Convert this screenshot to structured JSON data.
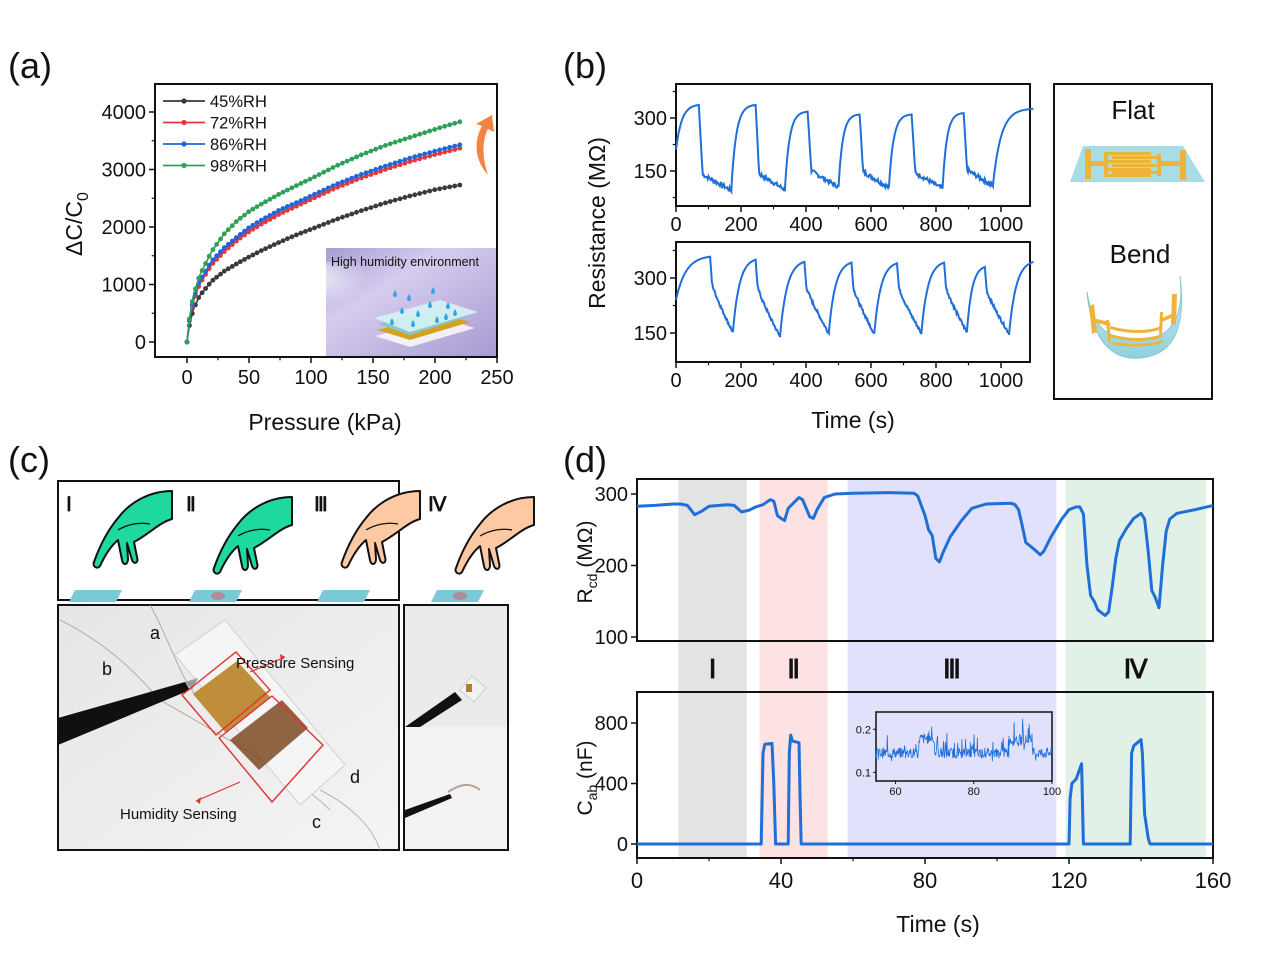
{
  "panel_labels": {
    "a": "(a)",
    "b": "(b)",
    "c": "(c)",
    "d": "(d)"
  },
  "colors": {
    "rh45": "#3a3a3a",
    "rh72": "#e8363a",
    "rh86": "#2066d8",
    "rh98": "#2ea05a",
    "trace": "#1f6fd8",
    "phase_I": "#e3e3e3",
    "phase_II": "#fde2e4",
    "phase_III": "#e1e1fb",
    "phase_IV": "#e2f1e8",
    "glove": "#1fd89f",
    "skin": "#fdc9a2",
    "pad": "#79c9d6",
    "electrode": "#f0b33a"
  },
  "chart_data": [
    {
      "id": "a",
      "type": "line",
      "title": "",
      "xlabel": "Pressure (kPa)",
      "ylabel": "ΔC/C0",
      "xlim": [
        -20,
        250
      ],
      "ylim": [
        -300,
        4400
      ],
      "xticks": [
        0,
        50,
        100,
        150,
        200,
        250
      ],
      "yticks": [
        0,
        1000,
        2000,
        3000,
        4000
      ],
      "legend_position": "top-left",
      "series": [
        {
          "name": "45%RH",
          "x": [
            0,
            2,
            5,
            10,
            20,
            30,
            40,
            50,
            60,
            75,
            90,
            100,
            120,
            140,
            160,
            180,
            200,
            220
          ],
          "y": [
            0,
            300,
            560,
            800,
            1060,
            1230,
            1360,
            1480,
            1590,
            1740,
            1880,
            1960,
            2130,
            2280,
            2420,
            2540,
            2650,
            2730
          ]
        },
        {
          "name": "72%RH",
          "x": [
            0,
            2,
            5,
            10,
            20,
            30,
            40,
            50,
            60,
            75,
            90,
            100,
            120,
            140,
            160,
            180,
            200,
            220
          ],
          "y": [
            0,
            380,
            700,
            1000,
            1350,
            1570,
            1760,
            1920,
            2050,
            2230,
            2380,
            2480,
            2680,
            2850,
            3000,
            3140,
            3260,
            3370
          ]
        },
        {
          "name": "86%RH",
          "x": [
            0,
            2,
            5,
            10,
            20,
            30,
            40,
            50,
            60,
            75,
            90,
            100,
            120,
            140,
            160,
            180,
            200,
            220
          ],
          "y": [
            0,
            400,
            740,
            1050,
            1410,
            1640,
            1820,
            1990,
            2120,
            2300,
            2440,
            2540,
            2740,
            2910,
            3060,
            3200,
            3320,
            3430
          ]
        },
        {
          "name": "98%RH",
          "x": [
            0,
            2,
            5,
            10,
            20,
            30,
            40,
            50,
            60,
            75,
            90,
            100,
            120,
            140,
            160,
            180,
            200,
            220
          ],
          "y": [
            0,
            420,
            800,
            1150,
            1580,
            1880,
            2100,
            2270,
            2400,
            2580,
            2740,
            2840,
            3060,
            3250,
            3420,
            3560,
            3700,
            3830
          ]
        }
      ],
      "annotation": "arrow indicating increasing humidity",
      "inset": {
        "text": "High humidity environment"
      }
    },
    {
      "id": "b-flat",
      "type": "line",
      "xlabel": "Time (s)",
      "ylabel": "Resistance (MΩ)",
      "xlim": [
        0,
        1100
      ],
      "ylim": [
        60,
        400
      ],
      "xticks": [
        0,
        200,
        400,
        600,
        800,
        1000
      ],
      "yticks": [
        150,
        300
      ],
      "series": [
        {
          "name": "Flat",
          "cycles": [
            {
              "rise_start": 0,
              "peak_t": 70,
              "peak": 337,
              "trough_t": 170,
              "trough": 95,
              "start": 210
            },
            {
              "rise_start": 170,
              "peak_t": 245,
              "peak": 337,
              "trough_t": 335,
              "trough": 97
            },
            {
              "rise_start": 335,
              "peak_t": 405,
              "peak": 318,
              "trough_t": 500,
              "trough": 105
            },
            {
              "rise_start": 500,
              "peak_t": 565,
              "peak": 310,
              "trough_t": 655,
              "trough": 103
            },
            {
              "rise_start": 655,
              "peak_t": 725,
              "peak": 310,
              "trough_t": 820,
              "trough": 100
            },
            {
              "rise_start": 820,
              "peak_t": 885,
              "peak": 314,
              "trough_t": 975,
              "trough": 108
            },
            {
              "rise_start": 975,
              "peak_t": 1100,
              "peak": 326
            }
          ]
        }
      ]
    },
    {
      "id": "b-bend",
      "type": "line",
      "xlabel": "Time (s)",
      "ylabel": "Resistance (MΩ)",
      "xlim": [
        0,
        1100
      ],
      "ylim": [
        70,
        380
      ],
      "xticks": [
        0,
        200,
        400,
        600,
        800,
        1000
      ],
      "yticks": [
        150,
        300
      ],
      "series": [
        {
          "name": "Bend",
          "cycles": [
            {
              "rise_start": 0,
              "peak_t": 105,
              "peak": 358,
              "trough_t": 175,
              "trough": 152,
              "start": 240
            },
            {
              "rise_start": 175,
              "peak_t": 245,
              "peak": 350,
              "trough_t": 320,
              "trough": 140
            },
            {
              "rise_start": 320,
              "peak_t": 395,
              "peak": 344,
              "trough_t": 470,
              "trough": 150
            },
            {
              "rise_start": 470,
              "peak_t": 540,
              "peak": 342,
              "trough_t": 610,
              "trough": 148
            },
            {
              "rise_start": 610,
              "peak_t": 680,
              "peak": 340,
              "trough_t": 755,
              "trough": 150
            },
            {
              "rise_start": 755,
              "peak_t": 825,
              "peak": 342,
              "trough_t": 895,
              "trough": 152
            },
            {
              "rise_start": 895,
              "peak_t": 950,
              "peak": 330,
              "trough_t": 1025,
              "trough": 148
            },
            {
              "rise_start": 1025,
              "peak_t": 1100,
              "peak": 344
            }
          ]
        }
      ]
    },
    {
      "id": "d-top",
      "type": "line",
      "ylabel": "Rcd (MΩ)",
      "ylabel_main": "R",
      "ylabel_sub": "cd",
      "ylabel_unit": " (MΩ)",
      "xlim": [
        0,
        160
      ],
      "ylim": [
        95,
        320
      ],
      "yticks": [
        100,
        200,
        300
      ],
      "points": [
        [
          0,
          283
        ],
        [
          5,
          284
        ],
        [
          10,
          286
        ],
        [
          12,
          286
        ],
        [
          14,
          284
        ],
        [
          16,
          271
        ],
        [
          18,
          276
        ],
        [
          20,
          283
        ],
        [
          25,
          285
        ],
        [
          27,
          284
        ],
        [
          29,
          275
        ],
        [
          31,
          277
        ],
        [
          33,
          282
        ],
        [
          35,
          285
        ],
        [
          37,
          292
        ],
        [
          38,
          290
        ],
        [
          39,
          270
        ],
        [
          40,
          266
        ],
        [
          41,
          263
        ],
        [
          42,
          280
        ],
        [
          44,
          290
        ],
        [
          45,
          295
        ],
        [
          46,
          292
        ],
        [
          48,
          268
        ],
        [
          49,
          266
        ],
        [
          50,
          278
        ],
        [
          52,
          295
        ],
        [
          55,
          300
        ],
        [
          60,
          301
        ],
        [
          70,
          302
        ],
        [
          77,
          301
        ],
        [
          78,
          297
        ],
        [
          80,
          270
        ],
        [
          81,
          250
        ],
        [
          82,
          242
        ],
        [
          83,
          210
        ],
        [
          84,
          205
        ],
        [
          85,
          218
        ],
        [
          87,
          240
        ],
        [
          90,
          262
        ],
        [
          93,
          280
        ],
        [
          97,
          286
        ],
        [
          104,
          287
        ],
        [
          105,
          285
        ],
        [
          106,
          278
        ],
        [
          107,
          256
        ],
        [
          108,
          232
        ],
        [
          110,
          224
        ],
        [
          112,
          215
        ],
        [
          113,
          220
        ],
        [
          115,
          240
        ],
        [
          118,
          265
        ],
        [
          120,
          278
        ],
        [
          122,
          282
        ],
        [
          123,
          282
        ],
        [
          124,
          272
        ],
        [
          125,
          200
        ],
        [
          126,
          158
        ],
        [
          127,
          150
        ],
        [
          128,
          138
        ],
        [
          130,
          130
        ],
        [
          131,
          135
        ],
        [
          132,
          170
        ],
        [
          133,
          210
        ],
        [
          134,
          235
        ],
        [
          136,
          252
        ],
        [
          138,
          266
        ],
        [
          140,
          273
        ],
        [
          141,
          265
        ],
        [
          142,
          220
        ],
        [
          143,
          165
        ],
        [
          144,
          155
        ],
        [
          145,
          141
        ],
        [
          146,
          200
        ],
        [
          147,
          248
        ],
        [
          148,
          265
        ],
        [
          150,
          273
        ],
        [
          155,
          278
        ],
        [
          160,
          284
        ]
      ]
    },
    {
      "id": "d-bottom",
      "type": "line",
      "ylabel": "Cab (nF)",
      "ylabel_main": "C",
      "ylabel_sub": "ab",
      "ylabel_unit": " (nF)",
      "xlabel": "Time (s)",
      "xlim": [
        0,
        160
      ],
      "ylim": [
        -90,
        1000
      ],
      "xticks": [
        0,
        40,
        80,
        120,
        160
      ],
      "yticks": [
        0,
        400,
        800
      ],
      "points": [
        [
          0,
          0
        ],
        [
          34.5,
          0
        ],
        [
          35,
          600
        ],
        [
          35.5,
          660
        ],
        [
          37.5,
          665
        ],
        [
          38,
          400
        ],
        [
          38.5,
          0
        ],
        [
          42,
          0
        ],
        [
          42.3,
          600
        ],
        [
          42.7,
          720
        ],
        [
          43.2,
          680
        ],
        [
          45,
          670
        ],
        [
          45.3,
          300
        ],
        [
          45.6,
          0
        ],
        [
          120,
          0
        ],
        [
          120.3,
          300
        ],
        [
          120.8,
          400
        ],
        [
          122,
          430
        ],
        [
          123.5,
          530
        ],
        [
          124,
          0
        ],
        [
          137,
          0
        ],
        [
          137.4,
          600
        ],
        [
          138,
          650
        ],
        [
          139,
          670
        ],
        [
          140,
          690
        ],
        [
          140.4,
          600
        ],
        [
          141,
          200
        ],
        [
          142,
          40
        ],
        [
          142.5,
          0
        ],
        [
          160,
          0
        ]
      ],
      "phases": [
        {
          "label": "Ⅰ",
          "start": 11.5,
          "end": 30.5,
          "color_key": "phase_I"
        },
        {
          "label": "Ⅱ",
          "start": 34,
          "end": 53,
          "color_key": "phase_II"
        },
        {
          "label": "Ⅲ",
          "start": 58.5,
          "end": 116.5,
          "color_key": "phase_III"
        },
        {
          "label": "Ⅳ",
          "start": 119,
          "end": 158,
          "color_key": "phase_IV"
        }
      ],
      "inset": {
        "type": "line",
        "xlim": [
          55,
          100
        ],
        "ylim": [
          0.08,
          0.24
        ],
        "xticks": [
          60,
          80,
          100
        ],
        "yticks": [
          0.1,
          0.2
        ],
        "levels": [
          {
            "start": 55,
            "end": 66,
            "value": 0.145
          },
          {
            "start": 66,
            "end": 70,
            "value": 0.178
          },
          {
            "start": 70,
            "end": 89,
            "value": 0.145
          },
          {
            "start": 89,
            "end": 95,
            "value": 0.175
          },
          {
            "start": 95,
            "end": 100,
            "value": 0.145
          }
        ]
      }
    }
  ],
  "panel_b_side": {
    "flat_label": "Flat",
    "bend_label": "Bend"
  },
  "panel_c": {
    "gesture_labels": [
      "Ⅰ",
      "Ⅱ",
      "Ⅲ",
      "Ⅳ"
    ],
    "photo_labels": {
      "a": "a",
      "b": "b",
      "c": "c",
      "d": "d"
    },
    "pressure_label": "Pressure Sensing",
    "humidity_label": "Humidity Sensing"
  }
}
